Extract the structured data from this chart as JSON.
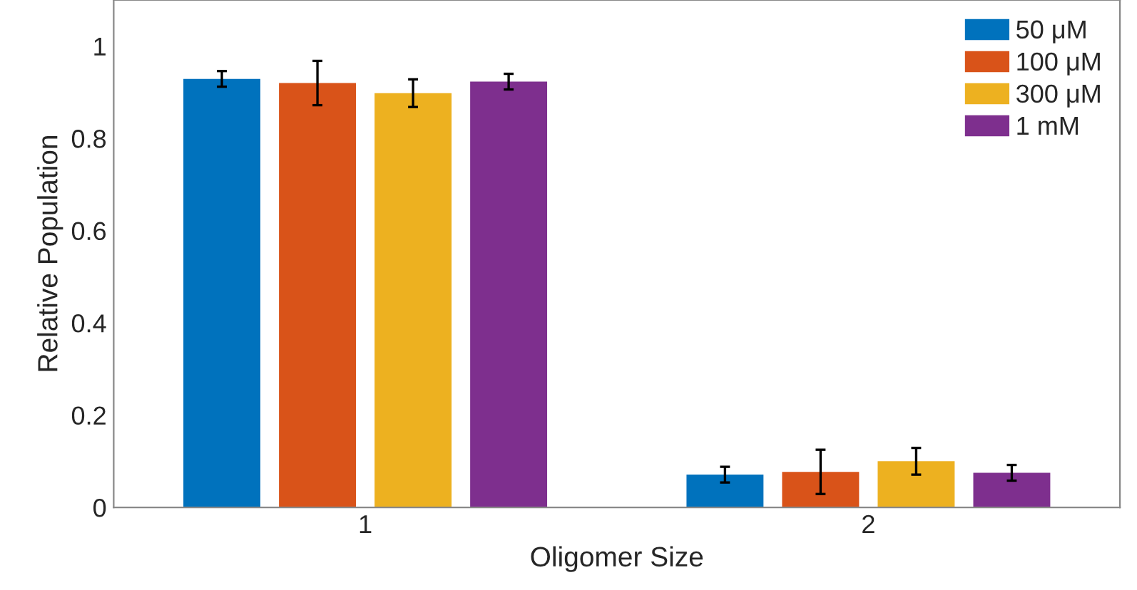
{
  "chart_data": {
    "type": "bar",
    "xlabel": "Oligomer Size",
    "ylabel": "Relative Population",
    "categories": [
      "1",
      "2"
    ],
    "series": [
      {
        "name": "50 μM",
        "color": "#0072bd",
        "values": [
          0.929,
          0.071
        ],
        "errors": [
          0.017,
          0.017
        ]
      },
      {
        "name": "100 μM",
        "color": "#d95319",
        "values": [
          0.92,
          0.077
        ],
        "errors": [
          0.048,
          0.048
        ]
      },
      {
        "name": "300 μM",
        "color": "#edb120",
        "values": [
          0.898,
          0.1
        ],
        "errors": [
          0.03,
          0.029
        ]
      },
      {
        "name": "1 mM",
        "color": "#7e2f8e",
        "values": [
          0.923,
          0.075
        ],
        "errors": [
          0.017,
          0.017
        ]
      }
    ],
    "ylim": [
      0,
      1.1
    ],
    "yticks": [
      0,
      {
        "value": 0.2,
        "label": "0.2"
      },
      {
        "value": 0.4,
        "label": "0.4"
      },
      {
        "value": 0.6,
        "label": "0.6"
      },
      {
        "value": 0.8,
        "label": "0.8"
      },
      1
    ],
    "legend": "top right",
    "grid": false
  }
}
